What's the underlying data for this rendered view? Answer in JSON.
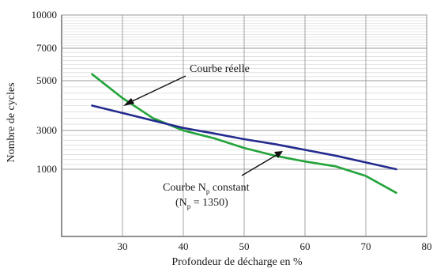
{
  "chart_data": {
    "type": "line",
    "xlabel": "Profondeur de décharge en %",
    "ylabel": "Nombre de cycles",
    "xlim": [
      20,
      80
    ],
    "x_ticks": [
      "30",
      "40",
      "50",
      "60",
      "70",
      "80"
    ],
    "y_ticks": [
      "1000",
      "3000",
      "5000",
      "7000",
      "10000"
    ],
    "y_tick_values": [
      1000,
      3000,
      5000,
      7000,
      10000
    ],
    "grid": true,
    "series": [
      {
        "color": "#22a33a",
        "x": [
          25,
          30,
          35,
          40,
          45,
          50,
          55,
          60,
          65,
          70,
          75
        ],
        "y": [
          5400,
          4300,
          3500,
          3000,
          2600,
          2100,
          1700,
          1400,
          1150,
          900,
          650
        ]
      },
      {
        "color": "#252b8e",
        "x": [
          25,
          30,
          35,
          40,
          45,
          50,
          55,
          60,
          65,
          70,
          75
        ],
        "y": [
          4000,
          3700,
          3400,
          3100,
          2850,
          2550,
          2300,
          2000,
          1700,
          1350,
          1000
        ]
      }
    ],
    "annotations": [
      {
        "text": "Courbe réelle"
      },
      {
        "text_main": "Courbe N",
        "text_sub": "p",
        "text_tail": " constant"
      },
      {
        "text_main": "(N",
        "text_sub": "p",
        "text_tail": " = 1350)"
      }
    ]
  }
}
